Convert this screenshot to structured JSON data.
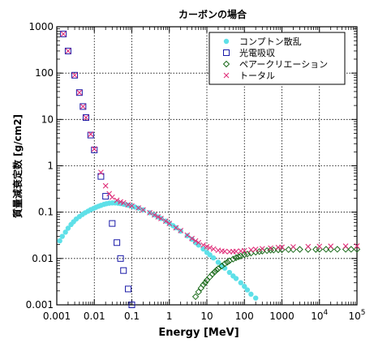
{
  "chart_data": {
    "type": "scatter",
    "title": "カーボンの場合",
    "xlabel": "Energy [MeV]",
    "ylabel": "質量減衰定数 [g/cm2]",
    "x_scale": "log",
    "y_scale": "log",
    "xlim": [
      0.001,
      100000
    ],
    "ylim": [
      0.001,
      1000
    ],
    "grid": true,
    "legend_position": "top-right",
    "x_ticks": [
      {
        "value": 0.001,
        "label": "0.001"
      },
      {
        "value": 0.01,
        "label": "0.01"
      },
      {
        "value": 0.1,
        "label": "0.1"
      },
      {
        "value": 1,
        "label": "1"
      },
      {
        "value": 10,
        "label": "10"
      },
      {
        "value": 100,
        "label": "100"
      },
      {
        "value": 1000,
        "label": "1000"
      },
      {
        "value": 10000,
        "label": "10",
        "sup": "4"
      },
      {
        "value": 100000,
        "label": "10",
        "sup": "5"
      }
    ],
    "y_ticks": [
      {
        "value": 0.001,
        "label": "0.001"
      },
      {
        "value": 0.01,
        "label": "0.01"
      },
      {
        "value": 0.1,
        "label": "0.1"
      },
      {
        "value": 1,
        "label": "1"
      },
      {
        "value": 10,
        "label": "10"
      },
      {
        "value": 100,
        "label": "100"
      },
      {
        "value": 1000,
        "label": "1000"
      }
    ],
    "series": [
      {
        "name": "コンプトン散乱",
        "marker": "filled-circle",
        "color": "#5ee0e8",
        "x": [
          0.0012,
          0.0014,
          0.0017,
          0.002,
          0.0024,
          0.0028,
          0.0033,
          0.004,
          0.0048,
          0.0057,
          0.0068,
          0.008,
          0.0095,
          0.011,
          0.013,
          0.015,
          0.018,
          0.021,
          0.025,
          0.03,
          0.036,
          0.043,
          0.05,
          0.06,
          0.07,
          0.08,
          0.1,
          0.12,
          0.15,
          0.2,
          0.3,
          0.4,
          0.5,
          0.6,
          0.8,
          1.0,
          1.25,
          1.5,
          2,
          3,
          4,
          5,
          6,
          8,
          10,
          12,
          15,
          20,
          25,
          30,
          40,
          50,
          60,
          80,
          100,
          120,
          150,
          200
        ],
        "y": [
          0.024,
          0.03,
          0.037,
          0.045,
          0.054,
          0.062,
          0.071,
          0.08,
          0.089,
          0.097,
          0.105,
          0.113,
          0.12,
          0.127,
          0.134,
          0.14,
          0.147,
          0.152,
          0.156,
          0.158,
          0.158,
          0.156,
          0.153,
          0.149,
          0.145,
          0.141,
          0.135,
          0.129,
          0.122,
          0.112,
          0.097,
          0.087,
          0.079,
          0.073,
          0.064,
          0.057,
          0.051,
          0.046,
          0.039,
          0.031,
          0.026,
          0.022,
          0.0195,
          0.016,
          0.0135,
          0.012,
          0.0103,
          0.0083,
          0.0071,
          0.0062,
          0.005,
          0.0042,
          0.0037,
          0.003,
          0.0025,
          0.0021,
          0.0017,
          0.0014
        ]
      },
      {
        "name": "光電吸収",
        "marker": "open-square",
        "color": "#1a1aa8",
        "x": [
          0.0015,
          0.002,
          0.003,
          0.004,
          0.005,
          0.006,
          0.008,
          0.01,
          0.015,
          0.02,
          0.03,
          0.04,
          0.05,
          0.06,
          0.08,
          0.1
        ],
        "y": [
          700,
          300,
          90,
          38,
          19,
          11,
          4.6,
          2.2,
          0.59,
          0.22,
          0.057,
          0.022,
          0.01,
          0.0055,
          0.0022,
          0.001
        ]
      },
      {
        "name": "ペアークリエーション",
        "marker": "open-diamond",
        "color": "#1a6a1a",
        "x": [
          5,
          6,
          7,
          8,
          9,
          10,
          12,
          14,
          16,
          18,
          20,
          25,
          30,
          35,
          40,
          50,
          60,
          70,
          80,
          100,
          120,
          150,
          200,
          250,
          300,
          400,
          500,
          600,
          800,
          1000,
          1500,
          2000,
          3000,
          5000,
          8000,
          10000,
          15000,
          20000,
          30000,
          50000,
          70000,
          100000
        ],
        "y": [
          0.0015,
          0.0019,
          0.0023,
          0.0027,
          0.003,
          0.0034,
          0.004,
          0.0046,
          0.0051,
          0.0056,
          0.006,
          0.0069,
          0.0077,
          0.0083,
          0.0089,
          0.0097,
          0.0104,
          0.0109,
          0.0113,
          0.012,
          0.0125,
          0.0131,
          0.0137,
          0.0141,
          0.0144,
          0.0148,
          0.0151,
          0.0152,
          0.0154,
          0.0155,
          0.0156,
          0.0156,
          0.0157,
          0.0157,
          0.0157,
          0.0158,
          0.0158,
          0.0158,
          0.0158,
          0.0158,
          0.0158,
          0.0158
        ]
      },
      {
        "name": "トータル",
        "marker": "x-cross",
        "color": "#e0307a",
        "x": [
          0.0015,
          0.002,
          0.003,
          0.004,
          0.005,
          0.006,
          0.008,
          0.01,
          0.015,
          0.02,
          0.025,
          0.03,
          0.04,
          0.05,
          0.06,
          0.08,
          0.1,
          0.15,
          0.2,
          0.3,
          0.4,
          0.5,
          0.6,
          0.8,
          1.0,
          1.5,
          2,
          3,
          4,
          5,
          6,
          8,
          10,
          12,
          15,
          20,
          25,
          30,
          40,
          50,
          60,
          80,
          100,
          150,
          200,
          300,
          500,
          800,
          1000,
          2000,
          5000,
          10000,
          20000,
          50000,
          100000
        ],
        "y": [
          700,
          300,
          90,
          38,
          19,
          11,
          4.8,
          2.3,
          0.72,
          0.37,
          0.25,
          0.21,
          0.18,
          0.167,
          0.159,
          0.145,
          0.137,
          0.123,
          0.112,
          0.097,
          0.087,
          0.079,
          0.073,
          0.064,
          0.057,
          0.046,
          0.04,
          0.032,
          0.027,
          0.024,
          0.022,
          0.0195,
          0.018,
          0.017,
          0.016,
          0.015,
          0.0145,
          0.0142,
          0.014,
          0.0141,
          0.0142,
          0.0145,
          0.0148,
          0.0154,
          0.0158,
          0.0163,
          0.0168,
          0.0173,
          0.0175,
          0.0178,
          0.0181,
          0.0183,
          0.0184,
          0.0185,
          0.0186
        ]
      }
    ]
  }
}
